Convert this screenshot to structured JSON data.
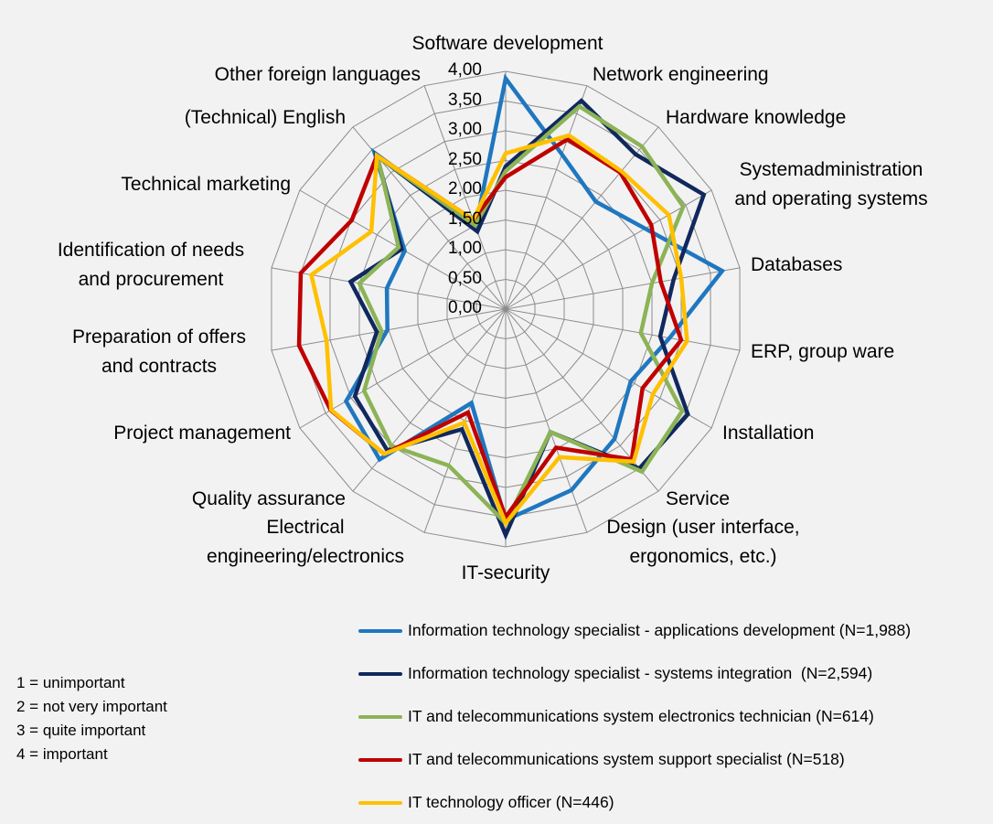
{
  "chart_data": {
    "type": "radar",
    "axes": [
      "Software development",
      "Network engineering",
      "Hardware knowledge",
      "Systemadministration and operating systems",
      "Databases",
      "ERP, group ware",
      "Installation",
      "Service",
      "Design (user interface, ergonomics, etc.)",
      "IT-security",
      "Electrical engineering/electronics",
      "Quality assurance",
      "Project management",
      "Preparation of offers and contracts",
      "Identification of needs and procurement",
      "Technical marketing",
      "(Technical) English",
      "Other foreign languages"
    ],
    "axis_label_lines": [
      [
        "Software development"
      ],
      [
        "Network engineering"
      ],
      [
        "Hardware knowledge"
      ],
      [
        "Systemadministration",
        "and operating systems"
      ],
      [
        "Databases"
      ],
      [
        "ERP, group ware"
      ],
      [
        "Installation"
      ],
      [
        "Service"
      ],
      [
        "Design (user interface,",
        "ergonomics, etc.)"
      ],
      [
        "IT-security"
      ],
      [
        "Electrical",
        "engineering/electronics"
      ],
      [
        "Quality assurance"
      ],
      [
        "Project management"
      ],
      [
        "Preparation of offers",
        "and contracts"
      ],
      [
        "Identification of needs",
        "and procurement"
      ],
      [
        "Technical marketing"
      ],
      [
        "(Technical) English"
      ],
      [
        "Other foreign languages"
      ]
    ],
    "rlim": [
      0,
      4
    ],
    "ticks": [
      "0,00",
      "0,50",
      "1,00",
      "1,50",
      "2,00",
      "2,50",
      "3,00",
      "3,50",
      "4,00"
    ],
    "tick_values": [
      0,
      0.5,
      1,
      1.5,
      2,
      2.5,
      3,
      3.5,
      4
    ],
    "grid": true,
    "legend_position": "bottom-right",
    "series": [
      {
        "name": "Information technology specialist - applications development (N=1,988)",
        "color": "#1f77c0",
        "values": [
          3.88,
          2.77,
          2.36,
          2.71,
          3.7,
          2.8,
          2.43,
          2.85,
          3.24,
          3.55,
          1.68,
          3.3,
          3.1,
          2.02,
          2.03,
          1.96,
          3.43,
          1.47
        ]
      },
      {
        "name": "Information technology specialist - systems integration  (N=2,594)",
        "color": "#10285e",
        "values": [
          2.4,
          3.73,
          3.4,
          3.85,
          2.87,
          2.64,
          3.54,
          3.5,
          2.2,
          3.8,
          2.15,
          3.1,
          2.93,
          2.2,
          2.65,
          2.02,
          3.37,
          1.39
        ]
      },
      {
        "name": "IT and telecommunications system electronics technician (N=614)",
        "color": "#8cb356",
        "values": [
          2.32,
          3.63,
          3.57,
          3.45,
          2.5,
          2.31,
          3.43,
          3.57,
          2.2,
          3.6,
          2.8,
          3.0,
          2.75,
          2.12,
          2.5,
          2.08,
          3.35,
          1.5
        ]
      },
      {
        "name": "IT and telecommunications system support specialist (N=518)",
        "color": "#c00000",
        "values": [
          2.22,
          3.04,
          3.0,
          2.83,
          2.65,
          3.0,
          2.66,
          3.3,
          2.48,
          3.5,
          1.85,
          3.18,
          3.4,
          3.53,
          3.5,
          2.99,
          3.37,
          1.6
        ]
      },
      {
        "name": "IT technology officer (N=446)",
        "color": "#ffc000",
        "values": [
          2.62,
          3.11,
          3.03,
          3.17,
          3.0,
          3.1,
          2.86,
          3.35,
          2.65,
          3.6,
          2.03,
          3.18,
          3.39,
          3.06,
          3.32,
          2.61,
          3.37,
          1.6
        ]
      }
    ],
    "notes": [
      "1 = unimportant",
      "2 = not very important",
      "3 = quite important",
      "4 = important"
    ]
  }
}
